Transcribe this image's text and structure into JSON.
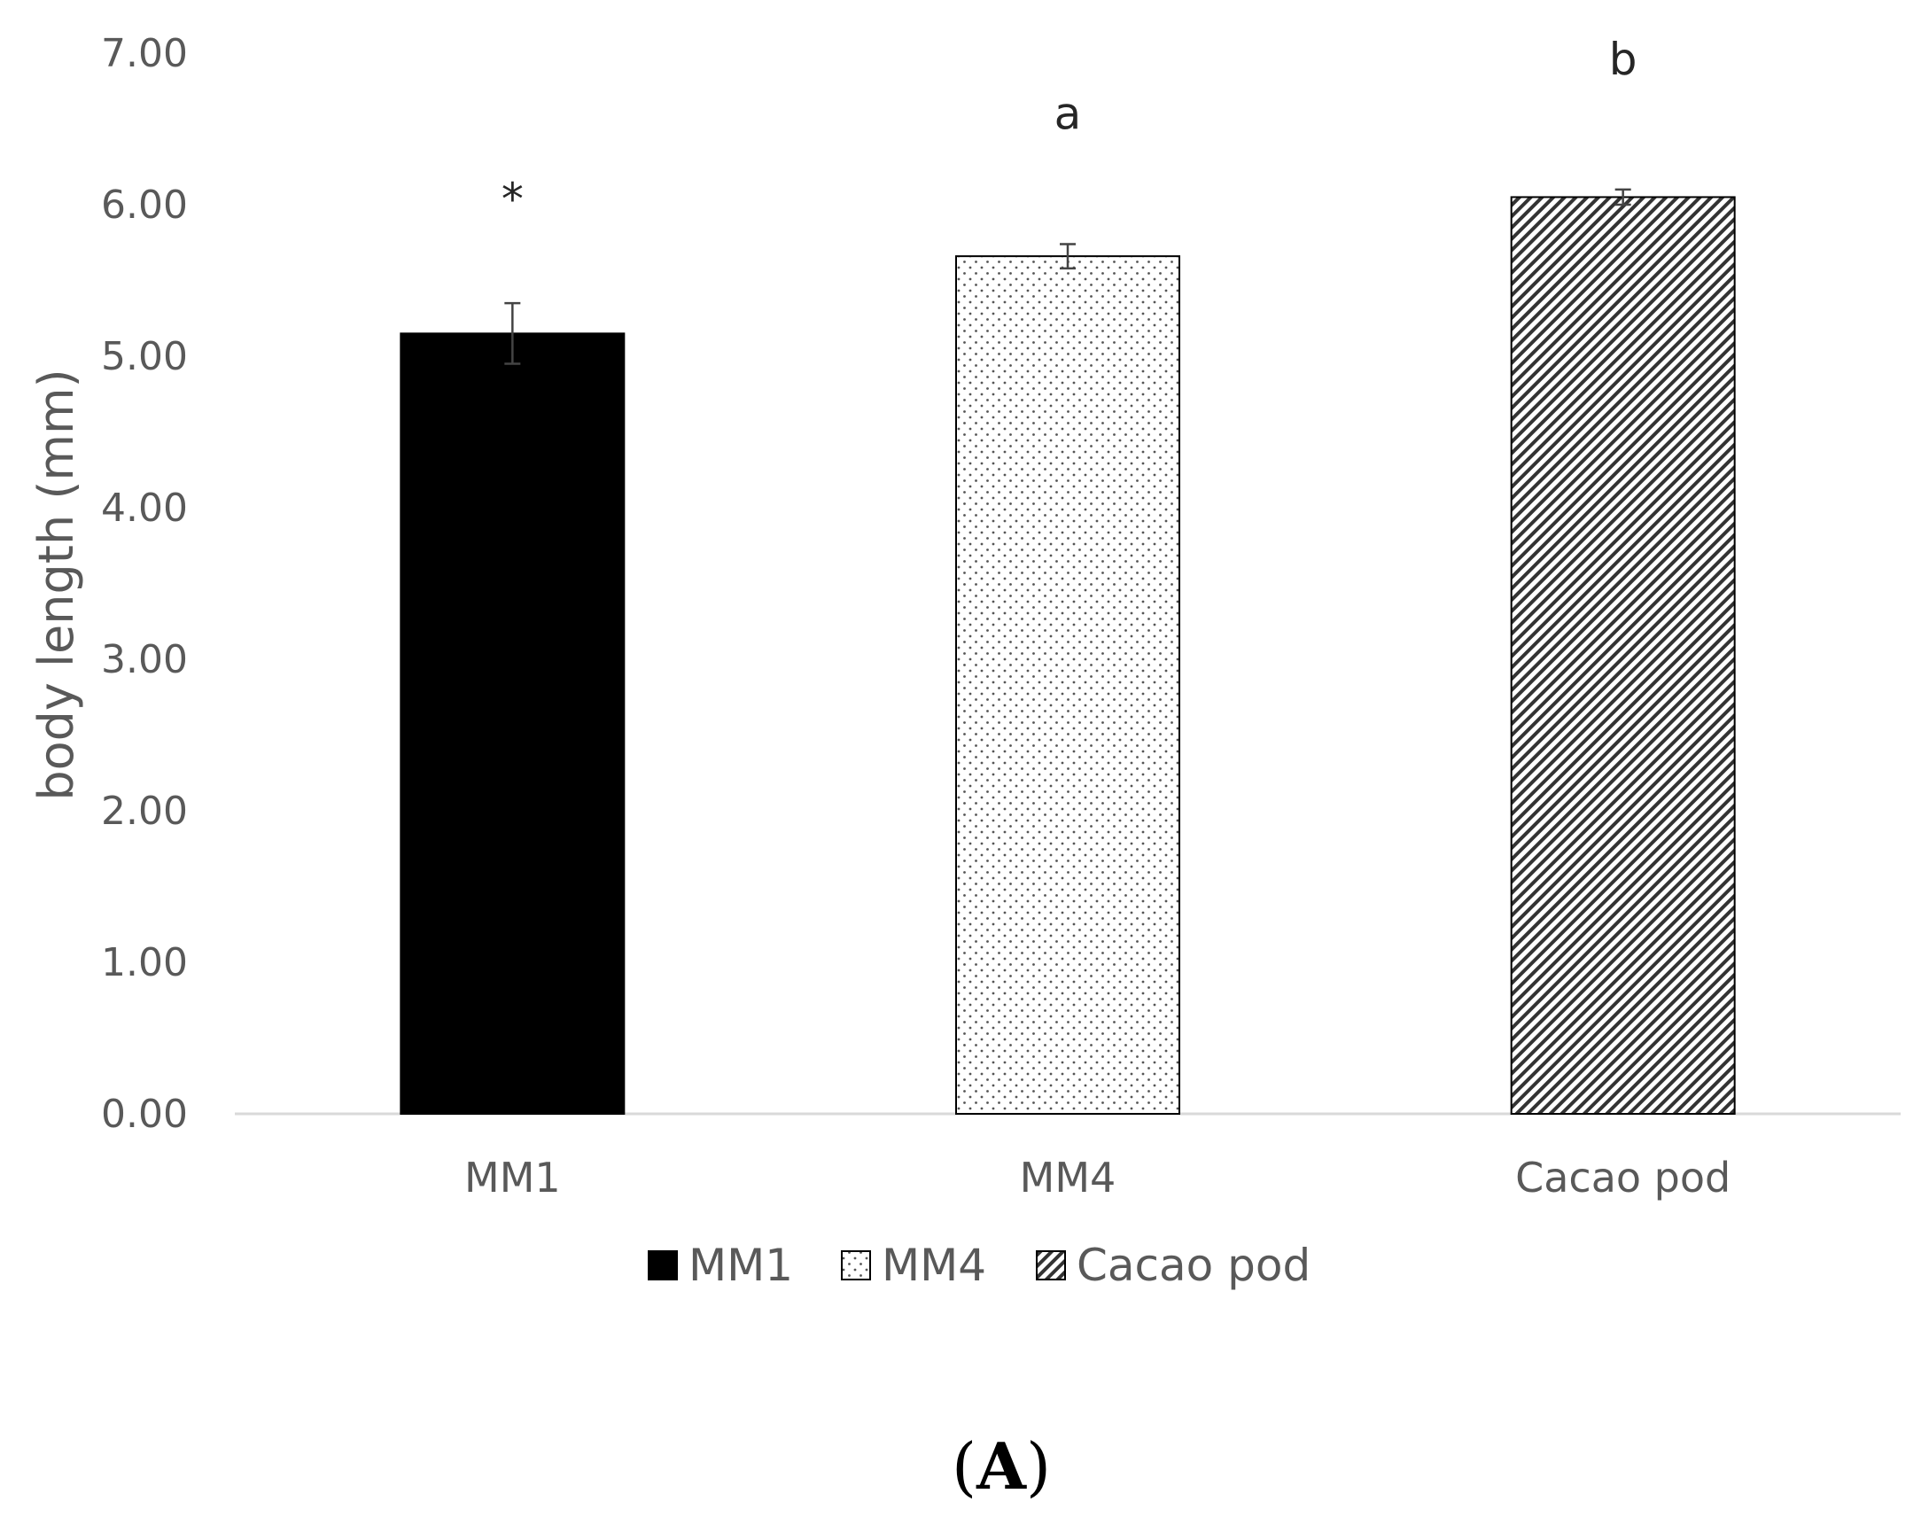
{
  "chart_data": {
    "type": "bar",
    "categories": [
      "MM1",
      "MM4",
      "Cacao pod"
    ],
    "values": [
      5.15,
      5.66,
      6.05
    ],
    "errors": [
      0.2,
      0.08,
      0.05
    ],
    "significance_labels": [
      "*",
      "a",
      "b"
    ],
    "ylabel": "body length (mm)",
    "xlabel": "",
    "ylim": [
      0,
      7
    ],
    "yticks": [
      "0.00",
      "1.00",
      "2.00",
      "3.00",
      "4.00",
      "5.00",
      "6.00",
      "7.00"
    ],
    "grid": false,
    "legend": {
      "placement": "bottom",
      "entries": [
        "MM1",
        "MM4",
        "Cacao pod"
      ]
    },
    "bar_fills": [
      "solid-black",
      "dotted",
      "diagonal-hatch"
    ]
  },
  "panel": {
    "open": "(",
    "letter": "A",
    "close": ")"
  }
}
